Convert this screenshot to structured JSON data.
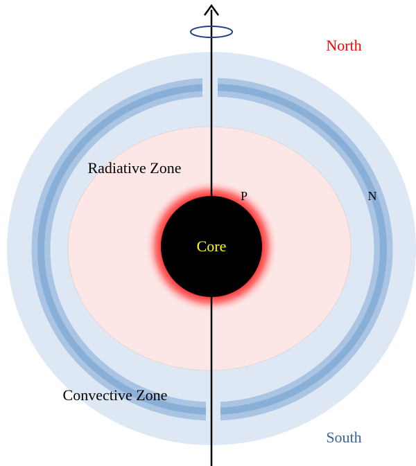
{
  "labels": {
    "north": "North",
    "south": "South",
    "radiative_zone": "Radiative Zone",
    "convective_zone": "Convective Zone",
    "core": "Core",
    "p": "P",
    "n": "N"
  }
}
